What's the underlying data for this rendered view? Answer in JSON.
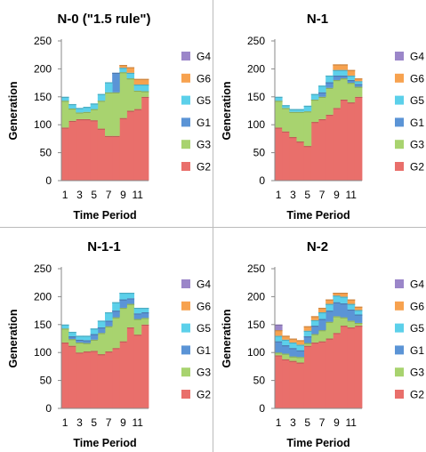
{
  "chart_data": [
    {
      "type": "area",
      "title": "N-0 (\"1.5 rule\")",
      "xlabel": "Time Period",
      "ylabel": "Generation",
      "x": [
        1,
        2,
        3,
        4,
        5,
        6,
        7,
        8,
        9,
        10,
        11,
        12
      ],
      "x_tick_labels": [
        "1",
        "3",
        "5",
        "7",
        "9",
        "11"
      ],
      "y_ticks": [
        "0",
        "50",
        "100",
        "150",
        "200",
        "250"
      ],
      "ylim": [
        0,
        250
      ],
      "legend": [
        "G4",
        "G6",
        "G5",
        "G1",
        "G3",
        "G2"
      ],
      "series": [
        {
          "name": "G2",
          "values": [
            95,
            107,
            110,
            110,
            108,
            93,
            80,
            80,
            112,
            125,
            128,
            150
          ]
        },
        {
          "name": "G3",
          "values": [
            48,
            22,
            12,
            13,
            20,
            50,
            78,
            78,
            82,
            58,
            33,
            10
          ]
        },
        {
          "name": "G1",
          "values": [
            0,
            0,
            0,
            0,
            0,
            0,
            0,
            35,
            0,
            0,
            0,
            0
          ]
        },
        {
          "name": "G5",
          "values": [
            7,
            8,
            8,
            9,
            10,
            12,
            18,
            0,
            8,
            10,
            11,
            12
          ]
        },
        {
          "name": "G6",
          "values": [
            0,
            0,
            0,
            0,
            0,
            0,
            0,
            0,
            5,
            10,
            10,
            10
          ]
        },
        {
          "name": "G4",
          "values": [
            0,
            0,
            0,
            0,
            0,
            0,
            0,
            0,
            0,
            0,
            0,
            0
          ]
        }
      ]
    },
    {
      "type": "area",
      "title": "N-1",
      "xlabel": "Time Period",
      "ylabel": "Generation",
      "x": [
        1,
        2,
        3,
        4,
        5,
        6,
        7,
        8,
        9,
        10,
        11,
        12
      ],
      "x_tick_labels": [
        "1",
        "3",
        "5",
        "7",
        "9",
        "11"
      ],
      "y_ticks": [
        "0",
        "50",
        "100",
        "150",
        "200",
        "250"
      ],
      "ylim": [
        0,
        250
      ],
      "legend": [
        "G4",
        "G6",
        "G5",
        "G1",
        "G3",
        "G2"
      ],
      "series": [
        {
          "name": "G2",
          "values": [
            95,
            88,
            78,
            70,
            62,
            105,
            110,
            118,
            130,
            145,
            140,
            150
          ]
        },
        {
          "name": "G3",
          "values": [
            48,
            42,
            45,
            53,
            62,
            40,
            40,
            48,
            50,
            38,
            35,
            18
          ]
        },
        {
          "name": "G1",
          "values": [
            0,
            0,
            0,
            0,
            0,
            0,
            8,
            10,
            8,
            5,
            5,
            5
          ]
        },
        {
          "name": "G5",
          "values": [
            7,
            5,
            5,
            5,
            10,
            10,
            12,
            12,
            10,
            10,
            8,
            5
          ]
        },
        {
          "name": "G6",
          "values": [
            0,
            0,
            0,
            0,
            0,
            0,
            0,
            0,
            10,
            10,
            10,
            5
          ]
        },
        {
          "name": "G4",
          "values": [
            0,
            0,
            0,
            0,
            0,
            0,
            0,
            0,
            0,
            0,
            0,
            0
          ]
        }
      ]
    },
    {
      "type": "area",
      "title": "N-1-1",
      "xlabel": "Time Period",
      "ylabel": "Generation",
      "x": [
        1,
        2,
        3,
        4,
        5,
        6,
        7,
        8,
        9,
        10,
        11,
        12
      ],
      "x_tick_labels": [
        "1",
        "3",
        "5",
        "7",
        "9",
        "11"
      ],
      "y_ticks": [
        "0",
        "50",
        "100",
        "150",
        "200",
        "250"
      ],
      "ylim": [
        0,
        250
      ],
      "legend": [
        "G4",
        "G6",
        "G5",
        "G1",
        "G3",
        "G2"
      ],
      "series": [
        {
          "name": "G2",
          "values": [
            118,
            112,
            100,
            102,
            103,
            97,
            102,
            108,
            120,
            145,
            132,
            150
          ]
        },
        {
          "name": "G3",
          "values": [
            25,
            12,
            18,
            15,
            20,
            38,
            45,
            55,
            60,
            42,
            28,
            12
          ]
        },
        {
          "name": "G1",
          "values": [
            0,
            5,
            5,
            5,
            10,
            10,
            10,
            12,
            15,
            10,
            10,
            10
          ]
        },
        {
          "name": "G5",
          "values": [
            7,
            8,
            7,
            8,
            10,
            12,
            15,
            15,
            12,
            10,
            10,
            8
          ]
        },
        {
          "name": "G6",
          "values": [
            0,
            0,
            0,
            0,
            0,
            0,
            0,
            0,
            0,
            0,
            0,
            0
          ]
        },
        {
          "name": "G4",
          "values": [
            0,
            0,
            0,
            0,
            0,
            0,
            0,
            0,
            0,
            0,
            0,
            0
          ]
        }
      ]
    },
    {
      "type": "area",
      "title": "N-2",
      "xlabel": "Time Period",
      "ylabel": "Generation",
      "x": [
        1,
        2,
        3,
        4,
        5,
        6,
        7,
        8,
        9,
        10,
        11,
        12
      ],
      "x_tick_labels": [
        "1",
        "3",
        "5",
        "7",
        "9",
        "11"
      ],
      "y_ticks": [
        "0",
        "50",
        "100",
        "150",
        "200",
        "250"
      ],
      "ylim": [
        0,
        250
      ],
      "legend": [
        "G4",
        "G6",
        "G5",
        "G1",
        "G3",
        "G2"
      ],
      "series": [
        {
          "name": "G2",
          "values": [
            95,
            88,
            85,
            82,
            112,
            118,
            120,
            125,
            135,
            148,
            145,
            148
          ]
        },
        {
          "name": "G3",
          "values": [
            5,
            10,
            8,
            10,
            5,
            15,
            20,
            30,
            30,
            15,
            12,
            5
          ]
        },
        {
          "name": "G1",
          "values": [
            20,
            15,
            15,
            12,
            12,
            15,
            20,
            20,
            25,
            25,
            20,
            15
          ]
        },
        {
          "name": "G5",
          "values": [
            10,
            10,
            10,
            10,
            10,
            10,
            12,
            12,
            12,
            12,
            10,
            8
          ]
        },
        {
          "name": "G6",
          "values": [
            10,
            7,
            7,
            8,
            8,
            7,
            8,
            8,
            5,
            7,
            8,
            6
          ]
        },
        {
          "name": "G4",
          "values": [
            10,
            0,
            0,
            0,
            0,
            0,
            0,
            0,
            0,
            0,
            0,
            0
          ]
        }
      ]
    }
  ],
  "colors": {
    "G2": "#e96f6b",
    "G3": "#a8d36f",
    "G1": "#5b94d6",
    "G5": "#5cd0ea",
    "G6": "#f7a24f",
    "G4": "#9b86c9",
    "divider": "#bbbbbb"
  }
}
